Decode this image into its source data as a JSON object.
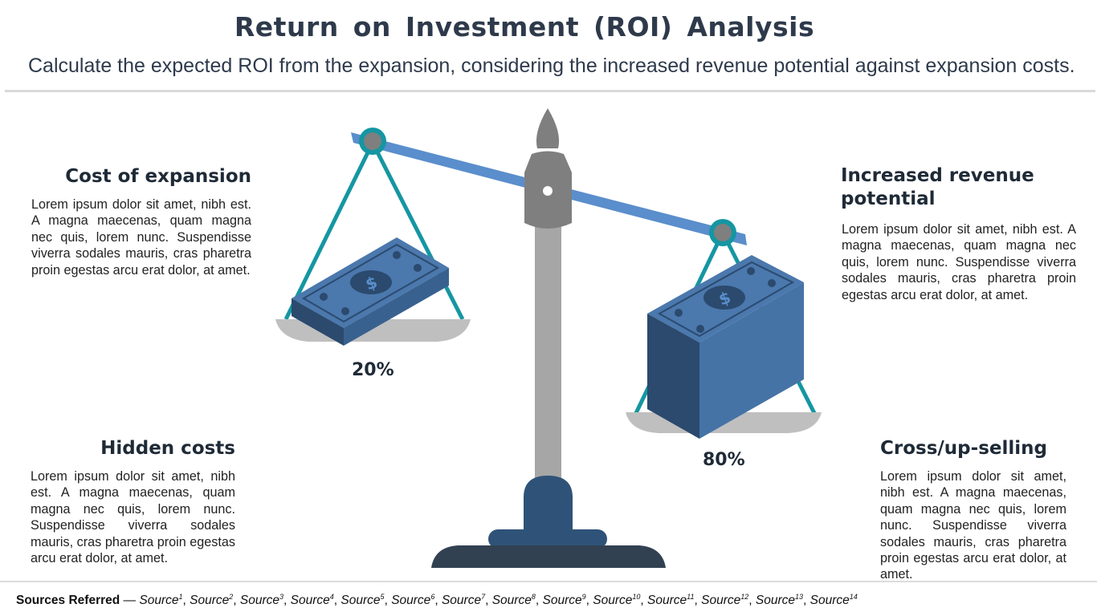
{
  "title": "Return  on Investment  (ROI)  Analysis",
  "subtitle": "Calculate the expected ROI from the expansion, considering the increased revenue potential against expansion costs.",
  "blocks": {
    "cost_of_expansion": {
      "title": "Cost of expansion",
      "body": "Lorem ipsum dolor sit amet, nibh est. A magna maecenas, quam magna nec quis, lorem nunc. Suspendisse viverra sodales mauris, cras pharetra proin egestas arcu erat dolor, at amet."
    },
    "hidden_costs": {
      "title": "Hidden costs",
      "body": "Lorem ipsum dolor sit amet, nibh est. A magna maecenas, quam magna nec quis, lorem nunc. Suspendisse viverra sodales mauris, cras pharetra proin egestas arcu erat dolor, at amet."
    },
    "increased_revenue": {
      "title": "Increased revenue potential",
      "body": "Lorem ipsum dolor sit amet, nibh est. A magna maecenas, quam magna nec quis, lorem nunc. Suspendisse viverra sodales mauris, cras pharetra proin egestas arcu erat dolor, at amet."
    },
    "cross_up_selling": {
      "title": "Cross/up-selling",
      "body": "Lorem ipsum dolor sit amet, nibh est. A magna maecenas, quam magna nec quis, lorem nunc. Suspendisse viverra sodales mauris, cras pharetra proin egestas arcu erat dolor, at amet."
    }
  },
  "scale": {
    "left_percent": "20%",
    "right_percent": "80%",
    "icons": [
      "balance-scale-icon",
      "money-stack-icon",
      "dollar-sign-icon"
    ],
    "colors": {
      "beam": "#5a8ecc",
      "chain": "#1596a2",
      "post": "#a6a6a6",
      "head": "#7f7f7f",
      "pan": "#bfbfbf",
      "base_dark": "#324152",
      "base_blue": "#2f5378",
      "money_top": "#4b78ad",
      "money_side": "#2b4a6e"
    }
  },
  "sources": {
    "label": "Sources Referred",
    "dash": "—",
    "items": [
      "Source",
      "Source",
      "Source",
      "Source",
      "Source",
      "Source",
      "Source",
      "Source",
      "Source",
      "Source",
      "Source",
      "Source",
      "Source",
      "Source"
    ],
    "sups": [
      "1",
      "2",
      "3",
      "4",
      "5",
      "6",
      "7",
      "8",
      "9",
      "10",
      "11",
      "12",
      "13",
      "14"
    ]
  }
}
